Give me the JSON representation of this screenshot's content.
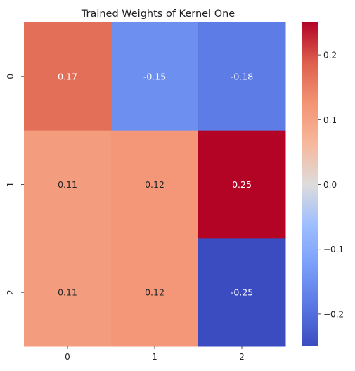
{
  "chart_data": {
    "type": "heatmap",
    "title": "Trained Weights of Kernel One",
    "x_categories": [
      "0",
      "1",
      "2"
    ],
    "y_categories": [
      "0",
      "1",
      "2"
    ],
    "values": [
      [
        0.17,
        -0.15,
        -0.18
      ],
      [
        0.11,
        0.12,
        0.25
      ],
      [
        0.11,
        0.12,
        -0.25
      ]
    ],
    "cell_labels": [
      [
        "0.17",
        "-0.15",
        "-0.18"
      ],
      [
        "0.11",
        "0.12",
        "0.25"
      ],
      [
        "0.11",
        "0.12",
        "-0.25"
      ]
    ],
    "colormap": "coolwarm",
    "vmin": -0.25,
    "vmax": 0.25,
    "colorbar": {
      "ticks": [
        0.2,
        0.1,
        0.0,
        -0.1,
        -0.2
      ],
      "tick_labels": [
        "0.2",
        "0.1",
        "0.0",
        "−0.1",
        "−0.2"
      ]
    },
    "grid": false
  }
}
